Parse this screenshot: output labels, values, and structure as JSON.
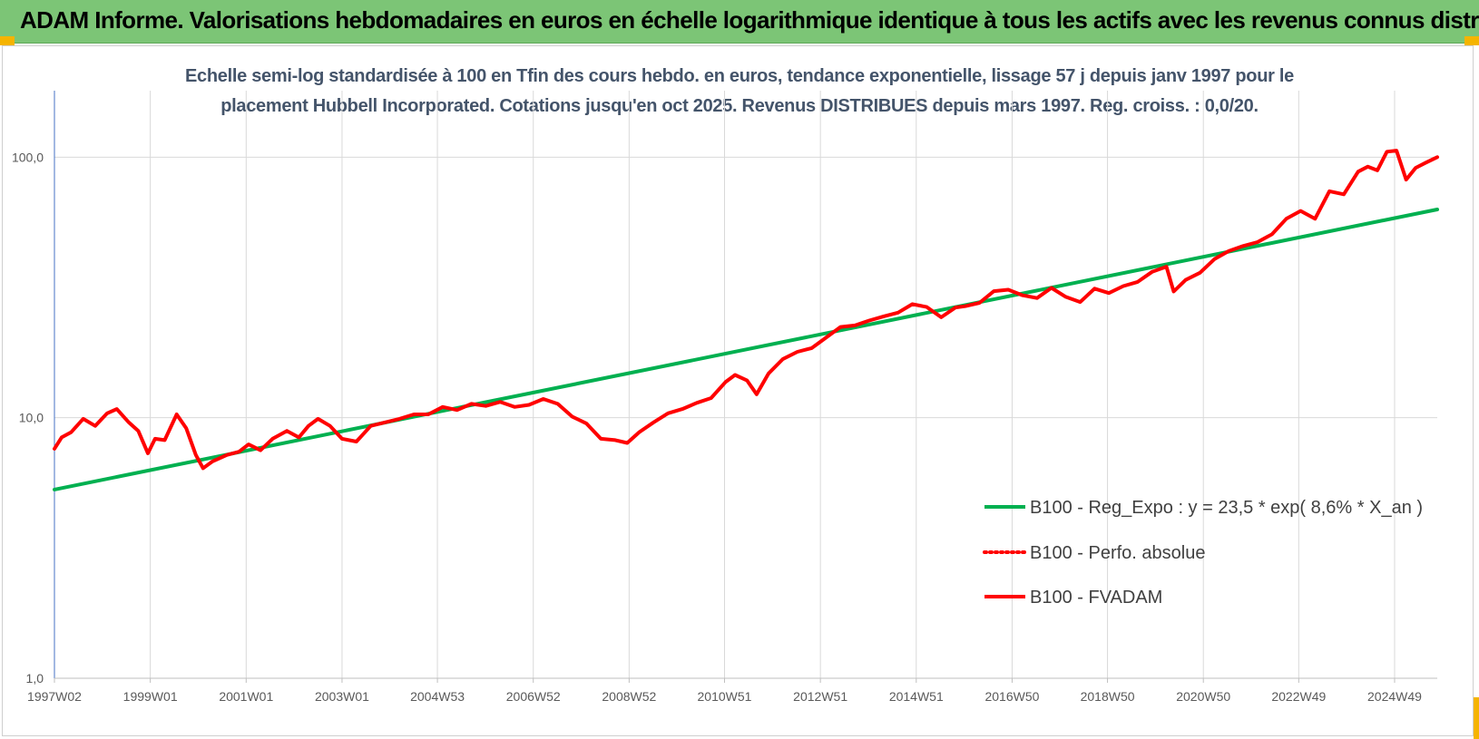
{
  "header": {
    "title": "ADAM Informe. Valorisations hebdomadaires en euros en échelle logarithmique identique à tous les actifs avec les revenus connus distribués"
  },
  "colors": {
    "header_bg": "#7cc576",
    "corner_accent": "#f5b400",
    "trend": "#00b050",
    "price": "#ff0000",
    "title_text": "#44546a"
  },
  "chart_data": {
    "type": "line",
    "title_line1": "Echelle semi-log standardisée à 100 en Tfin des cours hebdo. en euros, tendance exponentielle, lissage 57 j depuis janv 1997 pour le",
    "title_line2": "placement Hubbell Incorporated. Cotations jusqu'en oct 2025. Revenus DISTRIBUES depuis mars 1997. Reg. croiss. : 0,0/20.",
    "y_scale": "log",
    "ylim": [
      1,
      180
    ],
    "y_ticks": [
      1,
      10,
      100
    ],
    "y_tick_labels": [
      "1,0",
      "10,0",
      "100,0"
    ],
    "xlim": [
      1997.0,
      2025.85
    ],
    "x_ticks": [
      1997.0,
      1999.0,
      2001.0,
      2003.0,
      2004.99,
      2006.99,
      2008.99,
      2010.98,
      2012.98,
      2014.98,
      2016.98,
      2018.97,
      2020.97,
      2022.96,
      2024.96
    ],
    "x_tick_labels": [
      "1997W02",
      "1999W01",
      "2001W01",
      "2003W01",
      "2004W53",
      "2006W52",
      "2008W52",
      "2010W51",
      "2012W51",
      "2014W51",
      "2016W50",
      "2018W50",
      "2020W50",
      "2022W49",
      "2024W49"
    ],
    "grid": true,
    "legend_position": "right-center",
    "series": [
      {
        "name": "B100 - Reg_Expo : y = 23,5 * exp( 8,6% *  X_an )",
        "style": "solid",
        "color": "#00b050",
        "x": [
          1997.0,
          2025.85
        ],
        "y": [
          5.3,
          63
        ]
      },
      {
        "name": "B100 - Perfo. absolue",
        "style": "dotted",
        "color": "#ff0000",
        "x": [],
        "y": []
      },
      {
        "name": "B100 - FVADAM",
        "style": "solid",
        "color": "#ff0000",
        "x": [
          1997.0,
          1997.15,
          1997.35,
          1997.6,
          1997.85,
          1998.1,
          1998.3,
          1998.55,
          1998.75,
          1998.95,
          1999.1,
          1999.3,
          1999.55,
          1999.75,
          1999.95,
          2000.1,
          2000.3,
          2000.6,
          2000.85,
          2001.05,
          2001.3,
          2001.55,
          2001.85,
          2002.1,
          2002.3,
          2002.5,
          2002.75,
          2003.0,
          2003.3,
          2003.6,
          2003.9,
          2004.2,
          2004.5,
          2004.8,
          2005.1,
          2005.4,
          2005.7,
          2006.0,
          2006.3,
          2006.6,
          2006.9,
          2007.2,
          2007.5,
          2007.8,
          2008.1,
          2008.4,
          2008.7,
          2008.95,
          2009.2,
          2009.5,
          2009.8,
          2010.1,
          2010.4,
          2010.7,
          2011.0,
          2011.2,
          2011.45,
          2011.65,
          2011.9,
          2012.2,
          2012.5,
          2012.8,
          2013.1,
          2013.4,
          2013.7,
          2014.0,
          2014.3,
          2014.6,
          2014.9,
          2015.2,
          2015.5,
          2015.8,
          2016.0,
          2016.3,
          2016.6,
          2016.9,
          2017.2,
          2017.5,
          2017.8,
          2018.1,
          2018.4,
          2018.7,
          2019.0,
          2019.3,
          2019.6,
          2019.9,
          2020.2,
          2020.35,
          2020.6,
          2020.9,
          2021.2,
          2021.5,
          2021.8,
          2022.1,
          2022.4,
          2022.7,
          2023.0,
          2023.3,
          2023.6,
          2023.9,
          2024.2,
          2024.4,
          2024.6,
          2024.8,
          2025.0,
          2025.2,
          2025.4,
          2025.6,
          2025.85
        ],
        "y": [
          7.6,
          8.4,
          8.8,
          9.9,
          9.3,
          10.4,
          10.8,
          9.6,
          8.9,
          7.3,
          8.3,
          8.2,
          10.3,
          9.1,
          7.2,
          6.4,
          6.8,
          7.2,
          7.4,
          7.9,
          7.5,
          8.3,
          8.9,
          8.4,
          9.3,
          9.9,
          9.3,
          8.3,
          8.1,
          9.3,
          9.6,
          9.9,
          10.3,
          10.3,
          11.0,
          10.7,
          11.3,
          11.1,
          11.5,
          11.0,
          11.2,
          11.8,
          11.3,
          10.1,
          9.5,
          8.3,
          8.2,
          8.0,
          8.8,
          9.6,
          10.4,
          10.8,
          11.4,
          11.9,
          13.7,
          14.6,
          13.9,
          12.3,
          14.8,
          16.8,
          17.9,
          18.5,
          20.3,
          22.3,
          22.6,
          23.6,
          24.5,
          25.3,
          27.3,
          26.6,
          24.3,
          26.5,
          26.8,
          27.6,
          30.6,
          31.0,
          29.5,
          28.8,
          31.5,
          29.1,
          27.8,
          31.3,
          30.1,
          32.0,
          33.2,
          36.3,
          38.0,
          30.5,
          33.8,
          36.0,
          40.6,
          43.6,
          45.6,
          47.2,
          50.6,
          58.0,
          62.2,
          58.0,
          74.0,
          72.0,
          88.0,
          92.0,
          89.0,
          105.0,
          106.0,
          82.0,
          91.0,
          95.0,
          100.0
        ]
      }
    ]
  }
}
